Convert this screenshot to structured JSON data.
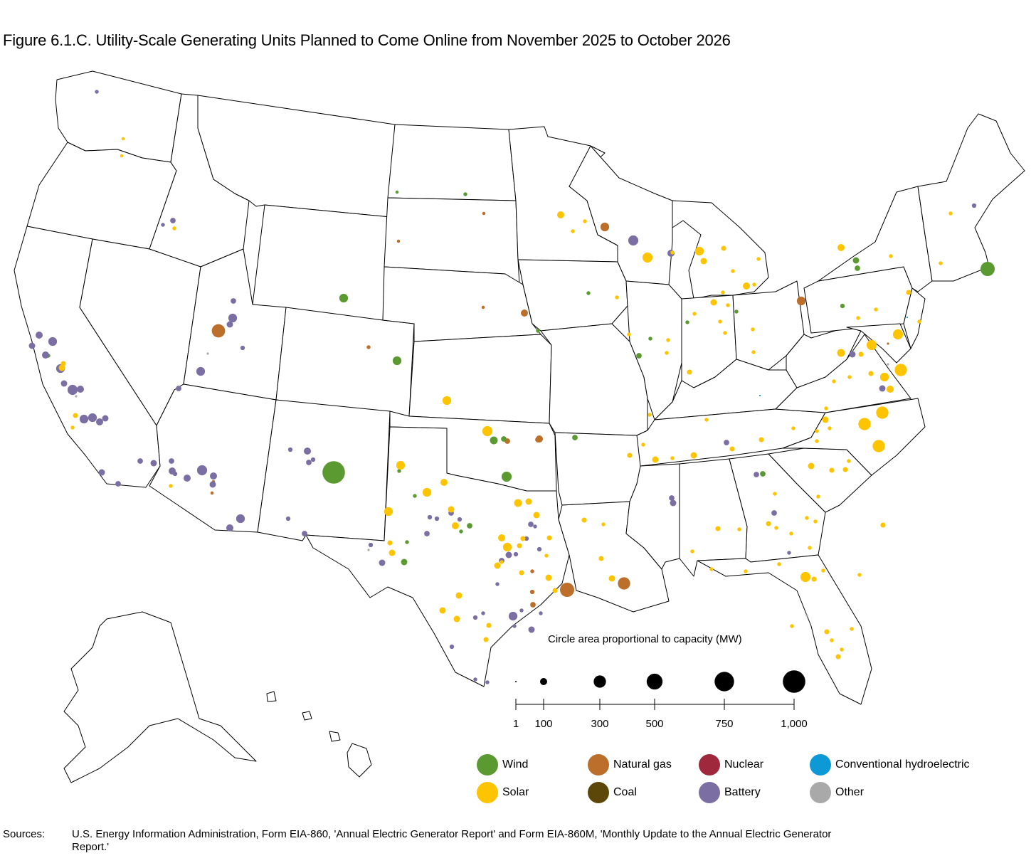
{
  "title": "Figure 6.1.C. Utility-Scale Generating Units Planned to Come Online from November 2025 to October 2026",
  "scale": {
    "title": "Circle area proportional to capacity (MW)",
    "values": [
      1,
      100,
      300,
      500,
      750,
      1000
    ],
    "labels": [
      "1",
      "100",
      "300",
      "500",
      "750",
      "1,000"
    ]
  },
  "legend": [
    {
      "key": "wind",
      "label": "Wind",
      "color": "#5b9a31"
    },
    {
      "key": "natural_gas",
      "label": "Natural gas",
      "color": "#bb6f2a"
    },
    {
      "key": "nuclear",
      "label": "Nuclear",
      "color": "#a0283c"
    },
    {
      "key": "hydro",
      "label": "Conventional hydroelectric",
      "color": "#0c99d6"
    },
    {
      "key": "solar",
      "label": "Solar",
      "color": "#fec400"
    },
    {
      "key": "coal",
      "label": "Coal",
      "color": "#5d4708"
    },
    {
      "key": "battery",
      "label": "Battery",
      "color": "#7b6ea2"
    },
    {
      "key": "other",
      "label": "Other",
      "color": "#a9a9a9"
    }
  ],
  "sources": {
    "label": "Sources:",
    "text": "U.S. Energy Information Administration, Form EIA-860, 'Annual Electric Generator Report' and Form EIA-860M, 'Monthly Update to the Annual Electric Generator Report.'"
  },
  "plants_mw": {
    "wind": [
      20,
      30,
      150,
      150,
      1000,
      120,
      60,
      200,
      60,
      30,
      30,
      30,
      30,
      30,
      60,
      40,
      60,
      80,
      400,
      30,
      30,
      30,
      30,
      30,
      80,
      60,
      60
    ],
    "solar": [
      20,
      20,
      30,
      100,
      30,
      200,
      30,
      150,
      80,
      50,
      100,
      30,
      30,
      30,
      30,
      30,
      30,
      80,
      30,
      30,
      30,
      30,
      50,
      30,
      30,
      30,
      30,
      30,
      100,
      120,
      30,
      30,
      30,
      200,
      150,
      100,
      300,
      300,
      300,
      300,
      200,
      150,
      150,
      200,
      150,
      100,
      150,
      80,
      100,
      120,
      80,
      80,
      100,
      150,
      50,
      50,
      80,
      30,
      50,
      80,
      50,
      30,
      50,
      80,
      80,
      80,
      50,
      50,
      80,
      50,
      80,
      50,
      30,
      50,
      50,
      30,
      80,
      30,
      80,
      50,
      50,
      30,
      80,
      30,
      80,
      50,
      30,
      30,
      50,
      30,
      30,
      50,
      30,
      30,
      50,
      30,
      30,
      50,
      200,
      30,
      30,
      30,
      30,
      30,
      50,
      30,
      30,
      50,
      50,
      50,
      30,
      30,
      30,
      30,
      30,
      30,
      30,
      30,
      30,
      30,
      30,
      50,
      30,
      50,
      30,
      50,
      30,
      80,
      50,
      30,
      30
    ],
    "natural_gas": [
      350,
      150,
      400,
      300,
      150,
      100,
      60,
      60,
      40,
      30,
      30,
      20,
      20,
      20,
      20,
      20,
      60,
      100,
      10
    ],
    "battery": [
      30,
      30,
      60,
      60,
      150,
      80,
      40,
      150,
      60,
      80,
      100,
      60,
      40,
      40,
      40,
      60,
      150,
      100,
      200,
      100,
      100,
      60,
      100,
      40,
      80,
      60,
      60,
      80,
      150,
      100,
      80,
      150,
      100,
      80,
      200,
      150,
      100,
      100,
      80,
      150,
      200,
      100,
      80,
      100,
      80,
      60,
      60,
      60,
      60,
      80,
      60,
      40,
      40,
      40,
      60,
      40,
      80,
      80,
      60,
      40,
      40,
      60,
      40,
      30,
      30,
      30,
      40,
      30,
      30,
      150,
      80,
      30,
      30,
      30,
      40,
      40,
      30
    ],
    "other": [
      10,
      10,
      10,
      10,
      10
    ],
    "hydro": [
      5,
      5
    ],
    "nuclear": []
  }
}
